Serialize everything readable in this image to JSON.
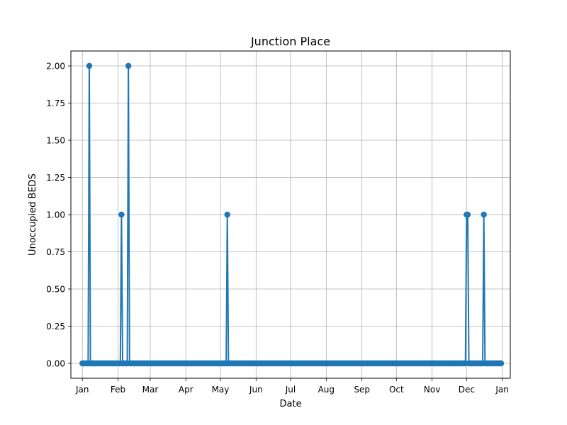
{
  "chart_data": {
    "type": "line",
    "title": "Junction Place",
    "xlabel": "Date",
    "ylabel": "Unoccupied BEDS",
    "x_domain": [
      "2022-01-01",
      "2023-01-01"
    ],
    "ylim": [
      -0.1,
      2.1
    ],
    "yticks": [
      0.0,
      0.25,
      0.5,
      0.75,
      1.0,
      1.25,
      1.5,
      1.75,
      2.0
    ],
    "ytick_labels": [
      "0.00",
      "0.25",
      "0.50",
      "0.75",
      "1.00",
      "1.25",
      "1.50",
      "1.75",
      "2.00"
    ],
    "xticks": [
      "2022-01-01",
      "2022-02-01",
      "2022-03-01",
      "2022-04-01",
      "2022-05-01",
      "2022-06-01",
      "2022-07-01",
      "2022-08-01",
      "2022-09-01",
      "2022-10-01",
      "2022-11-01",
      "2022-12-01",
      "2023-01-01"
    ],
    "xtick_labels": [
      "Jan",
      "Feb",
      "Mar",
      "Apr",
      "May",
      "Jun",
      "Jul",
      "Aug",
      "Sep",
      "Oct",
      "Nov",
      "Dec",
      "Jan"
    ],
    "grid": true,
    "series_color": "#1f77b4",
    "series": [
      {
        "start": "2022-01-01",
        "end": "2022-12-31",
        "baseline": 0,
        "nonzero": [
          {
            "date": "2022-01-07",
            "value": 2
          },
          {
            "date": "2022-02-04",
            "value": 1
          },
          {
            "date": "2022-02-10",
            "value": 2
          },
          {
            "date": "2022-05-07",
            "value": 1
          },
          {
            "date": "2022-12-01",
            "value": 1
          },
          {
            "date": "2022-12-02",
            "value": 1
          },
          {
            "date": "2022-12-16",
            "value": 1
          }
        ]
      }
    ]
  }
}
